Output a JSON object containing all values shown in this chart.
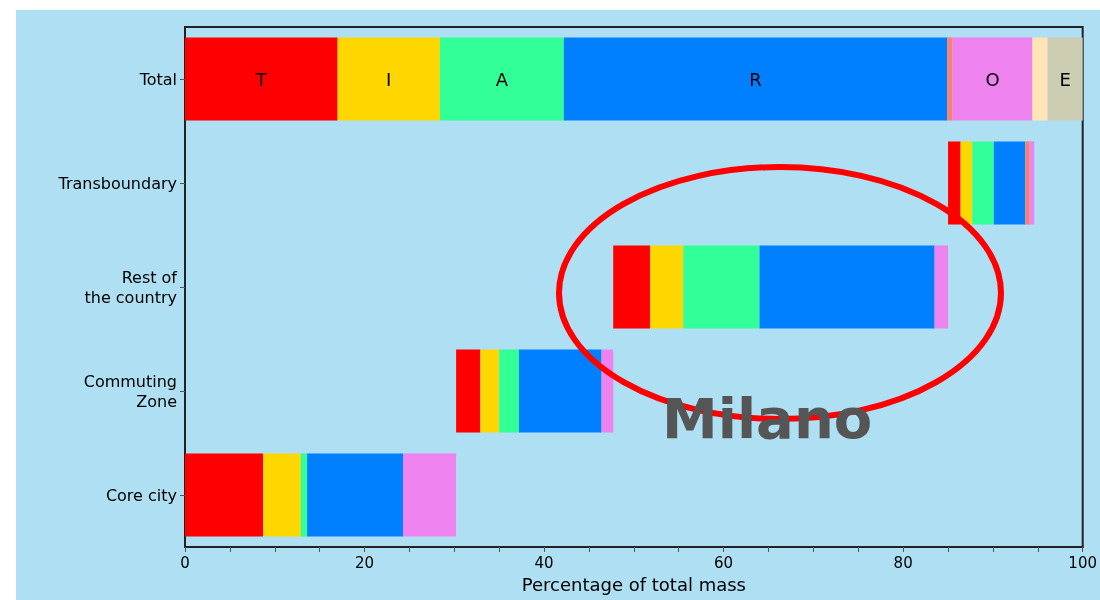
{
  "chart_data": {
    "type": "bar",
    "orientation": "horizontal",
    "xlabel": "Percentage of total mass",
    "annotations": [
      "Milano"
    ],
    "categories": [
      "Total",
      "Transboundary",
      "Rest of\nthe country",
      "Commuting\nZone",
      "Core city"
    ],
    "series": [
      {
        "name": "T",
        "color": "#ff0000",
        "base": [
          0,
          85.0,
          47.7,
          30.2,
          0
        ],
        "values": [
          17.0,
          1.4,
          4.1,
          2.7,
          8.7
        ]
      },
      {
        "name": "I",
        "color": "#ffd700",
        "base": [
          17.0,
          86.4,
          51.8,
          32.9,
          8.7
        ],
        "values": [
          11.4,
          1.3,
          3.7,
          2.1,
          4.2
        ]
      },
      {
        "name": "A",
        "color": "#33ff99",
        "base": [
          28.4,
          87.7,
          55.5,
          35.0,
          12.9
        ],
        "values": [
          13.8,
          2.4,
          8.5,
          2.2,
          0.7
        ]
      },
      {
        "name": "R",
        "color": "#0080ff",
        "base": [
          42.2,
          90.1,
          64.0,
          37.2,
          13.6
        ],
        "values": [
          42.7,
          3.5,
          19.5,
          9.2,
          10.7
        ]
      },
      {
        "color": "#fa8072",
        "base": [
          84.9,
          93.6,
          null,
          null,
          null
        ],
        "values": [
          0.6,
          0.5,
          null,
          null,
          null
        ]
      },
      {
        "name": "O",
        "color": "#ee82ee",
        "base": [
          85.5,
          94.1,
          83.5,
          46.4,
          24.3
        ],
        "values": [
          8.9,
          0.5,
          1.5,
          1.3,
          5.9
        ]
      },
      {
        "color": "#ffe4b5",
        "base": [
          94.4,
          null,
          null,
          null,
          null
        ],
        "values": [
          1.7,
          null,
          null,
          null,
          null
        ]
      },
      {
        "name": "E",
        "color": "#cdcdb4",
        "base": [
          96.1,
          null,
          null,
          null,
          null
        ],
        "values": [
          3.9,
          null,
          null,
          null,
          null
        ]
      }
    ],
    "xlim": [
      0,
      100
    ],
    "xticks": [
      0,
      {
        "value": 5,
        "label": null
      },
      {
        "value": 10,
        "label": null
      },
      {
        "value": 15,
        "label": null
      },
      20,
      {
        "value": 25,
        "label": null
      },
      {
        "value": 30,
        "label": null
      },
      {
        "value": 35,
        "label": null
      },
      40,
      {
        "value": 45,
        "label": null
      },
      {
        "value": 50,
        "label": null
      },
      {
        "value": 55,
        "label": null
      },
      60,
      {
        "value": 65,
        "label": null
      },
      {
        "value": 70,
        "label": null
      },
      {
        "value": 75,
        "label": null
      },
      80,
      {
        "value": 85,
        "label": null
      },
      {
        "value": 90,
        "label": null
      },
      {
        "value": 95,
        "label": null
      },
      100
    ],
    "grid": false,
    "legend": false
  }
}
